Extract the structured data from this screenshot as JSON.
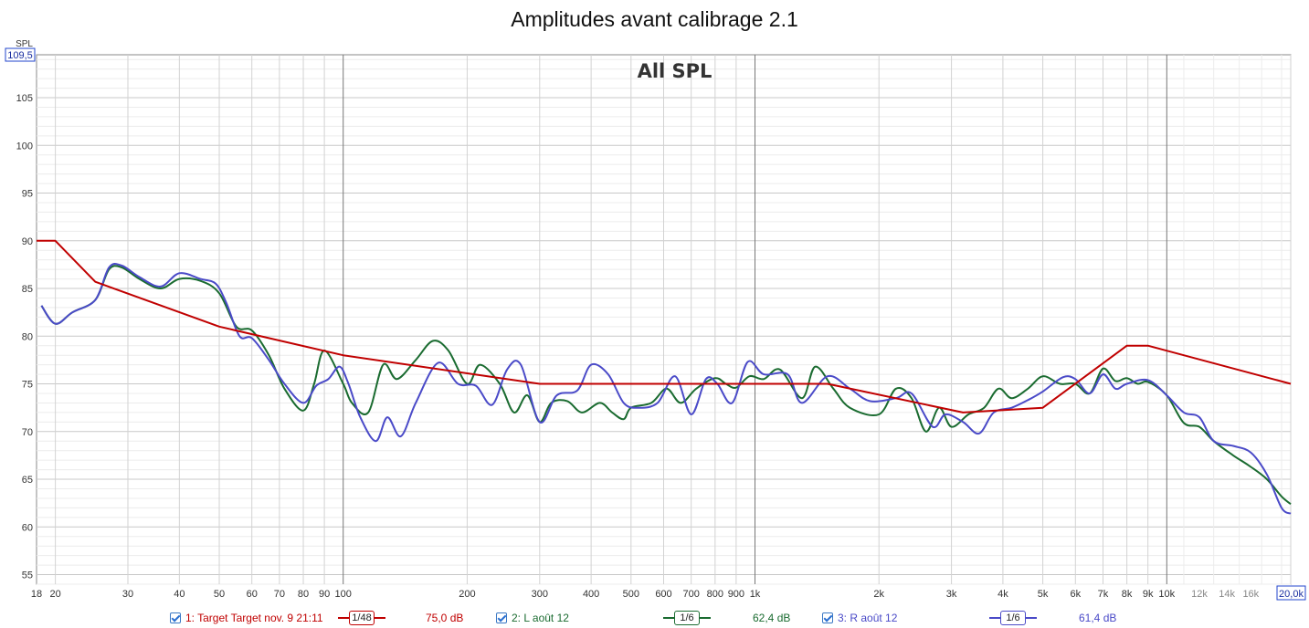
{
  "title": "Amplitudes avant calibrage 2.1",
  "chart_data": {
    "type": "line",
    "title": "Amplitudes avant calibrage 2.1",
    "subtitle": "All SPL",
    "ylabel": "SPL",
    "x_scale": "log",
    "xlim": [
      18,
      20000
    ],
    "ylim": [
      54,
      109.5
    ],
    "y_top_readout": "109,5",
    "x_right_readout": "20,0k",
    "yticks": [
      55,
      60,
      65,
      70,
      75,
      80,
      85,
      90,
      95,
      100,
      105
    ],
    "xticks": [
      {
        "v": 18,
        "label": "18"
      },
      {
        "v": 20,
        "label": "20"
      },
      {
        "v": 30,
        "label": "30"
      },
      {
        "v": 40,
        "label": "40"
      },
      {
        "v": 50,
        "label": "50"
      },
      {
        "v": 60,
        "label": "60"
      },
      {
        "v": 70,
        "label": "70"
      },
      {
        "v": 80,
        "label": "80"
      },
      {
        "v": 90,
        "label": "90"
      },
      {
        "v": 100,
        "label": "100"
      },
      {
        "v": 200,
        "label": "200"
      },
      {
        "v": 300,
        "label": "300"
      },
      {
        "v": 400,
        "label": "400"
      },
      {
        "v": 500,
        "label": "500"
      },
      {
        "v": 600,
        "label": "600"
      },
      {
        "v": 700,
        "label": "700"
      },
      {
        "v": 800,
        "label": "800"
      },
      {
        "v": 900,
        "label": "900"
      },
      {
        "v": 1000,
        "label": "1k"
      },
      {
        "v": 2000,
        "label": "2k"
      },
      {
        "v": 3000,
        "label": "3k"
      },
      {
        "v": 4000,
        "label": "4k"
      },
      {
        "v": 5000,
        "label": "5k"
      },
      {
        "v": 6000,
        "label": "6k"
      },
      {
        "v": 7000,
        "label": "7k"
      },
      {
        "v": 8000,
        "label": "8k"
      },
      {
        "v": 9000,
        "label": "9k"
      },
      {
        "v": 10000,
        "label": "10k"
      },
      {
        "v": 12000,
        "label": "12k",
        "muted": true
      },
      {
        "v": 14000,
        "label": "14k",
        "muted": true
      },
      {
        "v": 16000,
        "label": "16k",
        "muted": true
      }
    ],
    "grid": true,
    "legend_position": "bottom",
    "series": [
      {
        "name": "1: Target Target nov. 9 21:11",
        "color": "#c00000",
        "smoothing": "1/48",
        "level": "75,0 dB",
        "points": [
          [
            18,
            90
          ],
          [
            20,
            90
          ],
          [
            25,
            85.7
          ],
          [
            50,
            81
          ],
          [
            100,
            78
          ],
          [
            300,
            75
          ],
          [
            1500,
            75
          ],
          [
            3200,
            72
          ],
          [
            5000,
            72.5
          ],
          [
            8000,
            79
          ],
          [
            9000,
            79
          ],
          [
            20000,
            75
          ]
        ]
      },
      {
        "name": "2: L août 12",
        "color": "#1a6b30",
        "smoothing": "1/6",
        "level": "62,4 dB",
        "points": [
          [
            18.5,
            83.2
          ],
          [
            20,
            81.3
          ],
          [
            22,
            82.5
          ],
          [
            25,
            83.8
          ],
          [
            27,
            87
          ],
          [
            29,
            87.2
          ],
          [
            32,
            86
          ],
          [
            36,
            85
          ],
          [
            40,
            86
          ],
          [
            45,
            85.8
          ],
          [
            50,
            84.5
          ],
          [
            55,
            81
          ],
          [
            60,
            80.6
          ],
          [
            66,
            78
          ],
          [
            72,
            74.5
          ],
          [
            80,
            72.2
          ],
          [
            85,
            75
          ],
          [
            90,
            78.5
          ],
          [
            100,
            75
          ],
          [
            105,
            73
          ],
          [
            115,
            72
          ],
          [
            125,
            77
          ],
          [
            135,
            75.5
          ],
          [
            150,
            77.5
          ],
          [
            165,
            79.5
          ],
          [
            180,
            78.5
          ],
          [
            200,
            75
          ],
          [
            215,
            77
          ],
          [
            240,
            75
          ],
          [
            260,
            72
          ],
          [
            280,
            73.8
          ],
          [
            300,
            71
          ],
          [
            320,
            73
          ],
          [
            350,
            73.2
          ],
          [
            380,
            72
          ],
          [
            420,
            73
          ],
          [
            450,
            72
          ],
          [
            480,
            71.3
          ],
          [
            500,
            72.5
          ],
          [
            560,
            73
          ],
          [
            610,
            74.5
          ],
          [
            660,
            73
          ],
          [
            720,
            74.5
          ],
          [
            800,
            75.6
          ],
          [
            850,
            75
          ],
          [
            900,
            74.6
          ],
          [
            970,
            75.8
          ],
          [
            1050,
            75.5
          ],
          [
            1150,
            76.5
          ],
          [
            1300,
            73.5
          ],
          [
            1400,
            76.8
          ],
          [
            1550,
            74.5
          ],
          [
            1700,
            72.5
          ],
          [
            2000,
            71.8
          ],
          [
            2200,
            74.5
          ],
          [
            2400,
            73.5
          ],
          [
            2600,
            70
          ],
          [
            2800,
            72.5
          ],
          [
            3000,
            70.5
          ],
          [
            3300,
            71.8
          ],
          [
            3600,
            72.5
          ],
          [
            3900,
            74.5
          ],
          [
            4200,
            73.5
          ],
          [
            4600,
            74.5
          ],
          [
            5000,
            75.8
          ],
          [
            5500,
            75
          ],
          [
            6000,
            75
          ],
          [
            6500,
            74
          ],
          [
            7000,
            76.6
          ],
          [
            7500,
            75.3
          ],
          [
            8000,
            75.6
          ],
          [
            8500,
            75
          ],
          [
            9000,
            75.2
          ],
          [
            10000,
            73.8
          ],
          [
            11000,
            70.9
          ],
          [
            12000,
            70.5
          ],
          [
            13000,
            69
          ],
          [
            14500,
            67.5
          ],
          [
            16000,
            66.3
          ],
          [
            17500,
            65
          ],
          [
            19000,
            63.2
          ],
          [
            20000,
            62.4
          ]
        ]
      },
      {
        "name": "3: R août 12",
        "color": "#4a4ac8",
        "smoothing": "1/6",
        "level": "61,4 dB",
        "points": [
          [
            18.5,
            83.2
          ],
          [
            20,
            81.3
          ],
          [
            22,
            82.5
          ],
          [
            25,
            83.8
          ],
          [
            27,
            87.2
          ],
          [
            29,
            87.4
          ],
          [
            32,
            86.2
          ],
          [
            36,
            85.2
          ],
          [
            40,
            86.6
          ],
          [
            45,
            86
          ],
          [
            49,
            85.5
          ],
          [
            52,
            83.5
          ],
          [
            56,
            80
          ],
          [
            60,
            79.8
          ],
          [
            66,
            77.5
          ],
          [
            72,
            75
          ],
          [
            80,
            73
          ],
          [
            86,
            74.8
          ],
          [
            92,
            75.5
          ],
          [
            98,
            76.8
          ],
          [
            103,
            75
          ],
          [
            110,
            71.5
          ],
          [
            120,
            69
          ],
          [
            128,
            71.5
          ],
          [
            138,
            69.5
          ],
          [
            150,
            73
          ],
          [
            170,
            77.2
          ],
          [
            190,
            75
          ],
          [
            210,
            74.8
          ],
          [
            230,
            72.8
          ],
          [
            250,
            76.5
          ],
          [
            270,
            77
          ],
          [
            300,
            71
          ],
          [
            330,
            73.8
          ],
          [
            370,
            74.3
          ],
          [
            400,
            77
          ],
          [
            440,
            76
          ],
          [
            480,
            73
          ],
          [
            520,
            72.5
          ],
          [
            580,
            73
          ],
          [
            640,
            75.8
          ],
          [
            700,
            71.8
          ],
          [
            760,
            75.5
          ],
          [
            810,
            75
          ],
          [
            880,
            73
          ],
          [
            960,
            77.3
          ],
          [
            1050,
            76
          ],
          [
            1200,
            76
          ],
          [
            1300,
            73
          ],
          [
            1500,
            75.8
          ],
          [
            1700,
            74.5
          ],
          [
            1900,
            73.2
          ],
          [
            2200,
            73.5
          ],
          [
            2400,
            74
          ],
          [
            2700,
            70.5
          ],
          [
            2900,
            71.8
          ],
          [
            3200,
            71
          ],
          [
            3500,
            69.8
          ],
          [
            3800,
            72
          ],
          [
            4200,
            72.5
          ],
          [
            4600,
            73.3
          ],
          [
            5000,
            74.2
          ],
          [
            5600,
            75.7
          ],
          [
            6000,
            75.5
          ],
          [
            6500,
            74
          ],
          [
            7000,
            76
          ],
          [
            7500,
            74.5
          ],
          [
            8000,
            75
          ],
          [
            9000,
            75.4
          ],
          [
            10000,
            73.8
          ],
          [
            11000,
            72
          ],
          [
            12000,
            71.5
          ],
          [
            13000,
            69
          ],
          [
            14500,
            68.5
          ],
          [
            16000,
            67.8
          ],
          [
            17500,
            65.5
          ],
          [
            19000,
            62
          ],
          [
            20000,
            61.4
          ]
        ]
      }
    ]
  },
  "legend": [
    {
      "label": "1: Target Target nov. 9 21:11",
      "smoothing": "1/48",
      "level": "75,0 dB",
      "color": "#c00000",
      "checked": true
    },
    {
      "label": "2: L août 12",
      "smoothing": "1/6",
      "level": "62,4 dB",
      "color": "#1a6b30",
      "checked": true
    },
    {
      "label": "3: R août 12",
      "smoothing": "1/6",
      "level": "61,4 dB",
      "color": "#4a4ac8",
      "checked": true
    }
  ]
}
